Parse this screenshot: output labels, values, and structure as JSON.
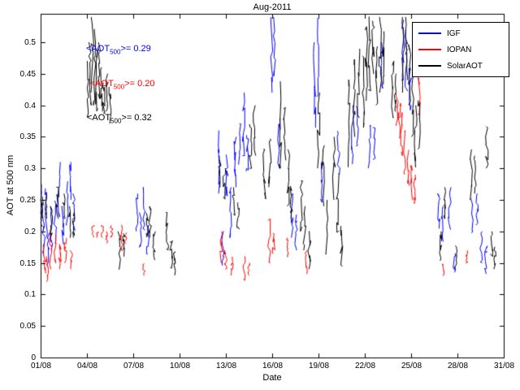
{
  "chart_data": {
    "type": "line",
    "title": "Aug-2011",
    "xlabel": "Date",
    "ylabel": "AOT at 500 nm",
    "xlim": [
      1,
      31
    ],
    "ylim": [
      0,
      0.545
    ],
    "grid": false,
    "legend_position": "northeast",
    "xtick_values": [
      1,
      4,
      7,
      10,
      13,
      16,
      19,
      22,
      25,
      28,
      31
    ],
    "xtick_labels": [
      "01/08",
      "04/08",
      "07/08",
      "10/08",
      "13/08",
      "16/08",
      "19/08",
      "22/08",
      "25/08",
      "28/08",
      "31/08"
    ],
    "ytick_values": [
      0,
      0.05,
      0.1,
      0.15,
      0.2,
      0.25,
      0.3,
      0.35,
      0.4,
      0.45,
      0.5
    ],
    "ytick_labels": [
      "0",
      "0.05",
      "0.1",
      "0.15",
      "0.2",
      "0.25",
      "0.3",
      "0.35",
      "0.4",
      "0.45",
      "0.5"
    ],
    "series": [
      {
        "name": "IGF",
        "color": "#0000ff",
        "streaks": [
          [
            1.05,
            0.22,
            0.28
          ],
          [
            1.2,
            0.16,
            0.23
          ],
          [
            1.35,
            0.19,
            0.27
          ],
          [
            1.5,
            0.14,
            0.2
          ],
          [
            1.7,
            0.17,
            0.24
          ],
          [
            1.95,
            0.18,
            0.25
          ],
          [
            2.2,
            0.22,
            0.31
          ],
          [
            2.45,
            0.18,
            0.24
          ],
          [
            2.7,
            0.21,
            0.28
          ],
          [
            2.95,
            0.25,
            0.31
          ],
          [
            3.15,
            0.2,
            0.26
          ],
          [
            7.25,
            0.2,
            0.26
          ],
          [
            7.45,
            0.17,
            0.23
          ],
          [
            7.7,
            0.2,
            0.27
          ],
          [
            7.95,
            0.16,
            0.21
          ],
          [
            12.55,
            0.26,
            0.36
          ],
          [
            12.8,
            0.14,
            0.2
          ],
          [
            13.05,
            0.25,
            0.33
          ],
          [
            13.3,
            0.19,
            0.27
          ],
          [
            13.6,
            0.27,
            0.35
          ],
          [
            13.9,
            0.3,
            0.38
          ],
          [
            14.15,
            0.32,
            0.42
          ],
          [
            14.4,
            0.29,
            0.36
          ],
          [
            15.95,
            0.42,
            0.54
          ],
          [
            16.15,
            0.44,
            0.54
          ],
          [
            16.45,
            0.3,
            0.38
          ],
          [
            17.3,
            0.19,
            0.26
          ],
          [
            17.55,
            0.17,
            0.23
          ],
          [
            18.75,
            0.35,
            0.5
          ],
          [
            18.95,
            0.4,
            0.54
          ],
          [
            19.2,
            0.24,
            0.32
          ],
          [
            20.3,
            0.29,
            0.36
          ],
          [
            21.2,
            0.3,
            0.4
          ],
          [
            21.5,
            0.33,
            0.4
          ],
          [
            22.3,
            0.3,
            0.37
          ],
          [
            22.6,
            0.31,
            0.37
          ],
          [
            23.1,
            0.42,
            0.5
          ],
          [
            24.45,
            0.44,
            0.54
          ],
          [
            24.7,
            0.42,
            0.52
          ],
          [
            24.95,
            0.39,
            0.47
          ],
          [
            26.8,
            0.2,
            0.26
          ],
          [
            27.05,
            0.18,
            0.24
          ],
          [
            27.5,
            0.2,
            0.27
          ],
          [
            27.8,
            0.13,
            0.17
          ],
          [
            28.95,
            0.19,
            0.25
          ],
          [
            29.25,
            0.21,
            0.26
          ],
          [
            29.55,
            0.15,
            0.2
          ],
          [
            29.85,
            0.13,
            0.18
          ]
        ]
      },
      {
        "name": "IOPAN",
        "color": "#ff0000",
        "streaks": [
          [
            1.25,
            0.13,
            0.18
          ],
          [
            1.45,
            0.12,
            0.16
          ],
          [
            1.65,
            0.14,
            0.21
          ],
          [
            1.95,
            0.15,
            0.2
          ],
          [
            2.25,
            0.14,
            0.18
          ],
          [
            2.6,
            0.15,
            0.19
          ],
          [
            3.0,
            0.14,
            0.17
          ],
          [
            4.4,
            0.19,
            0.21
          ],
          [
            4.7,
            0.19,
            0.2
          ],
          [
            5.0,
            0.19,
            0.21
          ],
          [
            5.3,
            0.18,
            0.2
          ],
          [
            5.6,
            0.19,
            0.21
          ],
          [
            6.25,
            0.17,
            0.21
          ],
          [
            6.5,
            0.18,
            0.2
          ],
          [
            7.7,
            0.13,
            0.15
          ],
          [
            12.7,
            0.15,
            0.2
          ],
          [
            13.0,
            0.14,
            0.17
          ],
          [
            13.4,
            0.13,
            0.16
          ],
          [
            14.2,
            0.12,
            0.16
          ],
          [
            14.5,
            0.13,
            0.15
          ],
          [
            15.8,
            0.15,
            0.22
          ],
          [
            16.1,
            0.16,
            0.2
          ],
          [
            17.0,
            0.16,
            0.19
          ],
          [
            18.2,
            0.13,
            0.17
          ],
          [
            24.1,
            0.36,
            0.42
          ],
          [
            24.25,
            0.34,
            0.41
          ],
          [
            24.4,
            0.32,
            0.39
          ],
          [
            24.6,
            0.29,
            0.36
          ],
          [
            24.8,
            0.27,
            0.33
          ],
          [
            25.0,
            0.25,
            0.31
          ],
          [
            25.2,
            0.24,
            0.29
          ],
          [
            25.5,
            0.38,
            0.45
          ],
          [
            27.1,
            0.13,
            0.15
          ],
          [
            28.6,
            0.15,
            0.17
          ]
        ]
      },
      {
        "name": "SolarAOT",
        "color": "#000000",
        "streaks": [
          [
            1.1,
            0.2,
            0.26
          ],
          [
            1.35,
            0.22,
            0.26
          ],
          [
            1.7,
            0.19,
            0.24
          ],
          [
            2.1,
            0.22,
            0.27
          ],
          [
            2.5,
            0.22,
            0.26
          ],
          [
            2.9,
            0.19,
            0.24
          ],
          [
            3.15,
            0.19,
            0.23
          ],
          [
            4.05,
            0.38,
            0.47
          ],
          [
            4.2,
            0.4,
            0.5
          ],
          [
            4.35,
            0.42,
            0.54
          ],
          [
            4.5,
            0.4,
            0.52
          ],
          [
            4.65,
            0.38,
            0.49
          ],
          [
            4.8,
            0.41,
            0.5
          ],
          [
            4.95,
            0.39,
            0.46
          ],
          [
            5.1,
            0.38,
            0.44
          ],
          [
            5.3,
            0.39,
            0.45
          ],
          [
            5.5,
            0.37,
            0.43
          ],
          [
            6.1,
            0.14,
            0.2
          ],
          [
            6.4,
            0.16,
            0.2
          ],
          [
            7.9,
            0.19,
            0.23
          ],
          [
            8.1,
            0.19,
            0.24
          ],
          [
            8.35,
            0.15,
            0.2
          ],
          [
            9.2,
            0.17,
            0.23
          ],
          [
            9.45,
            0.14,
            0.19
          ],
          [
            9.65,
            0.13,
            0.17
          ],
          [
            12.6,
            0.27,
            0.32
          ],
          [
            12.9,
            0.25,
            0.3
          ],
          [
            13.5,
            0.22,
            0.27
          ],
          [
            13.8,
            0.2,
            0.25
          ],
          [
            14.6,
            0.3,
            0.37
          ],
          [
            14.85,
            0.32,
            0.4
          ],
          [
            15.5,
            0.25,
            0.33
          ],
          [
            15.85,
            0.27,
            0.35
          ],
          [
            16.55,
            0.28,
            0.44
          ],
          [
            16.8,
            0.3,
            0.4
          ],
          [
            17.05,
            0.24,
            0.33
          ],
          [
            17.25,
            0.22,
            0.28
          ],
          [
            17.9,
            0.2,
            0.28
          ],
          [
            18.1,
            0.17,
            0.24
          ],
          [
            18.4,
            0.14,
            0.2
          ],
          [
            19.0,
            0.3,
            0.42
          ],
          [
            19.3,
            0.24,
            0.35
          ],
          [
            19.55,
            0.15,
            0.25
          ],
          [
            20.0,
            0.25,
            0.35
          ],
          [
            20.25,
            0.19,
            0.3
          ],
          [
            20.5,
            0.14,
            0.22
          ],
          [
            21.0,
            0.3,
            0.45
          ],
          [
            21.3,
            0.35,
            0.48
          ],
          [
            21.6,
            0.38,
            0.5
          ],
          [
            21.9,
            0.35,
            0.5
          ],
          [
            22.1,
            0.4,
            0.54
          ],
          [
            22.3,
            0.42,
            0.54
          ],
          [
            22.55,
            0.45,
            0.54
          ],
          [
            22.8,
            0.4,
            0.5
          ],
          [
            23.0,
            0.42,
            0.54
          ],
          [
            23.2,
            0.43,
            0.52
          ],
          [
            23.8,
            0.38,
            0.47
          ],
          [
            24.0,
            0.39,
            0.45
          ],
          [
            24.5,
            0.42,
            0.54
          ],
          [
            24.7,
            0.44,
            0.54
          ],
          [
            24.9,
            0.4,
            0.5
          ],
          [
            25.1,
            0.35,
            0.45
          ],
          [
            25.3,
            0.3,
            0.4
          ],
          [
            25.5,
            0.33,
            0.42
          ],
          [
            26.9,
            0.15,
            0.2
          ],
          [
            27.2,
            0.22,
            0.27
          ],
          [
            27.9,
            0.14,
            0.18
          ],
          [
            28.9,
            0.25,
            0.33
          ],
          [
            29.15,
            0.26,
            0.32
          ],
          [
            29.9,
            0.3,
            0.37
          ],
          [
            30.2,
            0.16,
            0.2
          ],
          [
            30.45,
            0.14,
            0.18
          ]
        ]
      }
    ],
    "annotations": [
      {
        "pre": "<AOT",
        "sub": "500",
        "post": ">= 0.29",
        "color": "#0000ff",
        "x_day": 3.95,
        "y_val": 0.487
      },
      {
        "pre": "<AOT",
        "sub": "500",
        "post": ">= 0.20",
        "color": "#ff0000",
        "x_day": 4.2,
        "y_val": 0.432
      },
      {
        "pre": "<AOT",
        "sub": "500",
        "post": ">= 0.32",
        "color": "#000000",
        "x_day": 4.0,
        "y_val": 0.377
      }
    ]
  }
}
